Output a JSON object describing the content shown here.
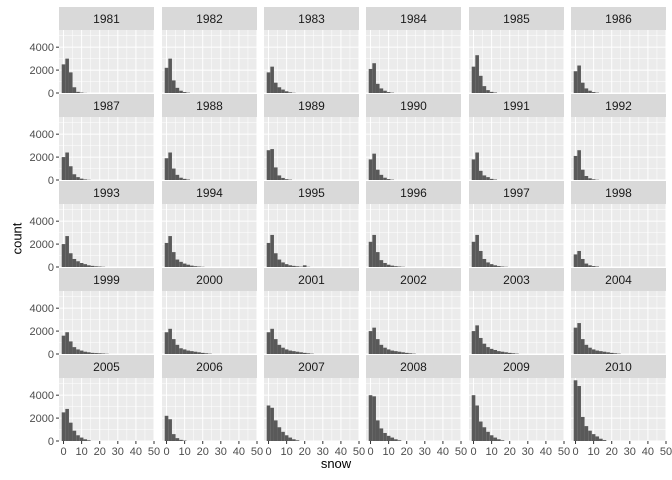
{
  "chart_data": {
    "type": "bar",
    "layout": "facet_wrap",
    "ncol": 6,
    "xlabel": "snow",
    "ylabel": "count",
    "xlim": [
      -2.5,
      50
    ],
    "ylim": [
      0,
      5500
    ],
    "x_ticks": [
      0,
      10,
      20,
      30,
      40,
      50
    ],
    "y_ticks": [
      0,
      2000,
      4000
    ],
    "bins": [
      -1,
      1,
      3,
      5,
      7,
      9,
      11,
      13,
      15,
      17,
      19,
      21,
      23,
      25
    ],
    "grid": true,
    "colors": {
      "panel_bg": "#EBEBEB",
      "strip_bg": "#D9D9D9",
      "bar": "#595959",
      "grid": "#FFFFFF",
      "text": "#1A1A1A",
      "axis_text": "#4D4D4D"
    },
    "facets": [
      {
        "label": "1981",
        "counts": [
          2500,
          3000,
          1800,
          500,
          100,
          40,
          10
        ]
      },
      {
        "label": "1982",
        "counts": [
          2200,
          3000,
          1100,
          450,
          200,
          80,
          30
        ]
      },
      {
        "label": "1983",
        "counts": [
          1800,
          2300,
          900,
          500,
          300,
          150,
          60,
          20
        ]
      },
      {
        "label": "1984",
        "counts": [
          2100,
          2600,
          800,
          400,
          200,
          80,
          30
        ]
      },
      {
        "label": "1985",
        "counts": [
          2300,
          3300,
          1500,
          600,
          250,
          100,
          40
        ]
      },
      {
        "label": "1986",
        "counts": [
          1900,
          2400,
          900,
          400,
          200,
          80,
          30
        ]
      },
      {
        "label": "1987",
        "counts": [
          2000,
          2400,
          1200,
          500,
          250,
          120,
          50,
          20
        ]
      },
      {
        "label": "1988",
        "counts": [
          1900,
          2400,
          1000,
          450,
          200,
          100,
          40
        ]
      },
      {
        "label": "1989",
        "counts": [
          2600,
          2700,
          1100,
          400,
          180,
          70,
          30
        ]
      },
      {
        "label": "1990",
        "counts": [
          1800,
          2300,
          900,
          450,
          200,
          80,
          30
        ]
      },
      {
        "label": "1991",
        "counts": [
          1800,
          2400,
          800,
          400,
          250,
          100,
          40
        ]
      },
      {
        "label": "1992",
        "counts": [
          2100,
          2600,
          900,
          350,
          150,
          60,
          20
        ]
      },
      {
        "label": "1993",
        "counts": [
          2000,
          2700,
          1200,
          700,
          500,
          350,
          250,
          150,
          100,
          60,
          40,
          20
        ]
      },
      {
        "label": "1994",
        "counts": [
          2100,
          2700,
          1300,
          650,
          450,
          300,
          200,
          120,
          70,
          40,
          20
        ]
      },
      {
        "label": "1995",
        "counts": [
          2100,
          2800,
          1200,
          650,
          400,
          250,
          150,
          100,
          60,
          30,
          150,
          20
        ]
      },
      {
        "label": "1996",
        "counts": [
          2200,
          2800,
          1300,
          600,
          350,
          200,
          120,
          70,
          40,
          20
        ]
      },
      {
        "label": "1997",
        "counts": [
          2200,
          2800,
          1400,
          700,
          400,
          250,
          150,
          80,
          40,
          20
        ]
      },
      {
        "label": "1998",
        "counts": [
          1100,
          1400,
          700,
          300,
          150,
          80,
          40
        ]
      },
      {
        "label": "1999",
        "counts": [
          1600,
          1900,
          1100,
          600,
          400,
          300,
          200,
          150,
          100,
          80,
          60,
          40,
          20
        ]
      },
      {
        "label": "2000",
        "counts": [
          1900,
          2200,
          1300,
          800,
          500,
          400,
          300,
          250,
          200,
          150,
          100,
          60,
          30
        ]
      },
      {
        "label": "2001",
        "counts": [
          1900,
          2200,
          1300,
          800,
          550,
          400,
          300,
          250,
          200,
          150,
          100,
          60,
          30
        ]
      },
      {
        "label": "2002",
        "counts": [
          2000,
          2300,
          1300,
          800,
          550,
          400,
          300,
          250,
          200,
          150,
          100,
          60,
          30
        ]
      },
      {
        "label": "2003",
        "counts": [
          2000,
          2500,
          1400,
          900,
          600,
          450,
          350,
          250,
          200,
          150,
          100,
          60,
          30
        ]
      },
      {
        "label": "2004",
        "counts": [
          2300,
          2700,
          1300,
          800,
          550,
          400,
          300,
          250,
          200,
          150,
          100,
          60,
          30
        ]
      },
      {
        "label": "2005",
        "counts": [
          2500,
          2800,
          1600,
          900,
          500,
          300,
          150,
          60
        ]
      },
      {
        "label": "2006",
        "counts": [
          2200,
          1900,
          600,
          250,
          100,
          40
        ]
      },
      {
        "label": "2007",
        "counts": [
          3100,
          2900,
          1800,
          1200,
          800,
          500,
          300,
          150,
          60
        ]
      },
      {
        "label": "2008",
        "counts": [
          4000,
          3900,
          1800,
          1100,
          700,
          450,
          300,
          150,
          60
        ]
      },
      {
        "label": "2009",
        "counts": [
          4000,
          3100,
          1700,
          1200,
          800,
          500,
          300,
          150,
          60
        ]
      },
      {
        "label": "2010",
        "counts": [
          5300,
          4800,
          2100,
          1300,
          900,
          600,
          400,
          200,
          80
        ]
      }
    ]
  }
}
